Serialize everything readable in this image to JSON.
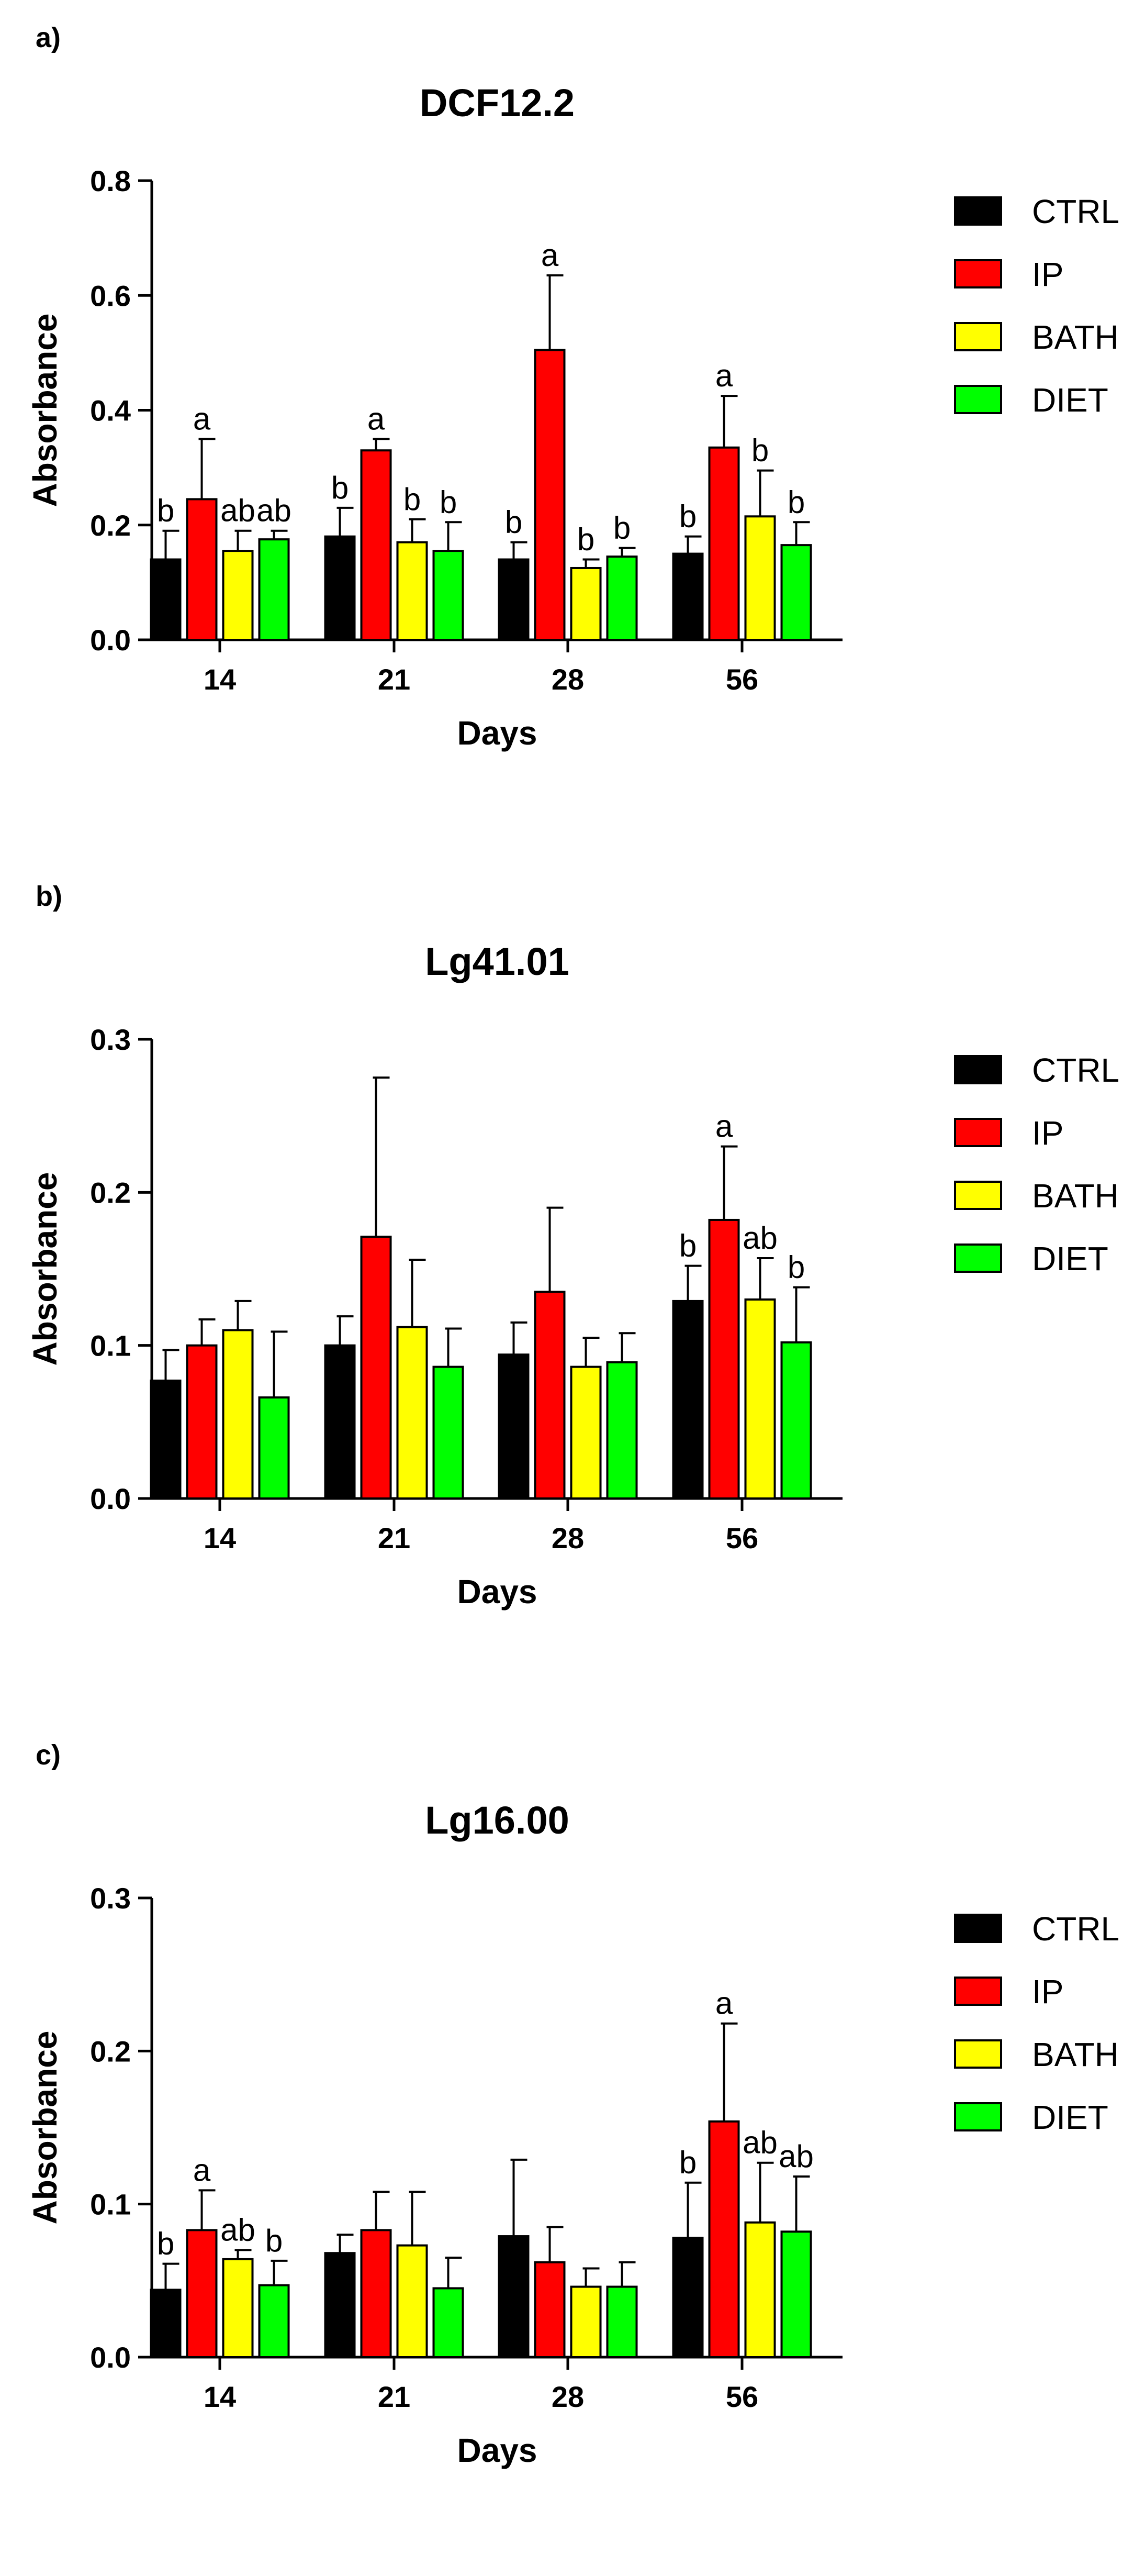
{
  "chart_data": [
    {
      "type": "bar",
      "panel_label": "a)",
      "title": "DCF12.2",
      "xlabel": "Days",
      "ylabel": "Absorbance",
      "ylim": [
        0,
        0.8
      ],
      "yticks": [
        "0.0",
        "0.2",
        "0.4",
        "0.6",
        "0.8"
      ],
      "ytick_values": [
        0,
        0.2,
        0.4,
        0.6,
        0.8
      ],
      "categories": [
        "14",
        "21",
        "28",
        "56"
      ],
      "series": [
        {
          "name": "CTRL",
          "color": "#000000",
          "values": [
            0.14,
            0.18,
            0.14,
            0.15
          ],
          "errors": [
            0.05,
            0.05,
            0.03,
            0.03
          ],
          "letters": [
            "b",
            "b",
            "b",
            "b"
          ]
        },
        {
          "name": "IP",
          "color": "#ff0000",
          "values": [
            0.245,
            0.33,
            0.505,
            0.335
          ],
          "errors": [
            0.105,
            0.02,
            0.13,
            0.09
          ],
          "letters": [
            "a",
            "a",
            "a",
            "a"
          ]
        },
        {
          "name": "BATH",
          "color": "#ffff00",
          "values": [
            0.155,
            0.17,
            0.125,
            0.215
          ],
          "errors": [
            0.035,
            0.04,
            0.015,
            0.08
          ],
          "letters": [
            "ab",
            "b",
            "b",
            "b"
          ]
        },
        {
          "name": "DIET",
          "color": "#00ff00",
          "values": [
            0.175,
            0.155,
            0.145,
            0.165
          ],
          "errors": [
            0.015,
            0.05,
            0.015,
            0.04
          ],
          "letters": [
            "ab",
            "b",
            "b",
            "b"
          ]
        }
      ]
    },
    {
      "type": "bar",
      "panel_label": "b)",
      "title": "Lg41.01",
      "xlabel": "Days",
      "ylabel": "Absorbance",
      "ylim": [
        0,
        0.3
      ],
      "yticks": [
        "0.0",
        "0.1",
        "0.2",
        "0.3"
      ],
      "ytick_values": [
        0,
        0.1,
        0.2,
        0.3
      ],
      "categories": [
        "14",
        "21",
        "28",
        "56"
      ],
      "series": [
        {
          "name": "CTRL",
          "color": "#000000",
          "values": [
            0.077,
            0.1,
            0.094,
            0.129
          ],
          "errors": [
            0.02,
            0.019,
            0.021,
            0.023
          ],
          "letters": [
            "",
            "",
            "",
            "b"
          ]
        },
        {
          "name": "IP",
          "color": "#ff0000",
          "values": [
            0.1,
            0.171,
            0.135,
            0.182
          ],
          "errors": [
            0.017,
            0.104,
            0.055,
            0.048
          ],
          "letters": [
            "",
            "",
            "",
            "a"
          ]
        },
        {
          "name": "BATH",
          "color": "#ffff00",
          "values": [
            0.11,
            0.112,
            0.086,
            0.13
          ],
          "errors": [
            0.019,
            0.044,
            0.019,
            0.027
          ],
          "letters": [
            "",
            "",
            "",
            "ab"
          ]
        },
        {
          "name": "DIET",
          "color": "#00ff00",
          "values": [
            0.066,
            0.086,
            0.089,
            0.102
          ],
          "errors": [
            0.043,
            0.025,
            0.019,
            0.036
          ],
          "letters": [
            "",
            "",
            "",
            "b"
          ]
        }
      ]
    },
    {
      "type": "bar",
      "panel_label": "c)",
      "title": "Lg16.00",
      "xlabel": "Days",
      "ylabel": "Absorbance",
      "ylim": [
        0,
        0.3
      ],
      "yticks": [
        "0.0",
        "0.1",
        "0.2",
        "0.3"
      ],
      "ytick_values": [
        0,
        0.1,
        0.2,
        0.3
      ],
      "categories": [
        "14",
        "21",
        "28",
        "56"
      ],
      "series": [
        {
          "name": "CTRL",
          "color": "#000000",
          "values": [
            0.044,
            0.068,
            0.079,
            0.078
          ],
          "errors": [
            0.017,
            0.012,
            0.05,
            0.036
          ],
          "letters": [
            "b",
            "",
            "",
            "b"
          ]
        },
        {
          "name": "IP",
          "color": "#ff0000",
          "values": [
            0.083,
            0.083,
            0.062,
            0.154
          ],
          "errors": [
            0.026,
            0.025,
            0.023,
            0.064
          ],
          "letters": [
            "a",
            "",
            "",
            "a"
          ]
        },
        {
          "name": "BATH",
          "color": "#ffff00",
          "values": [
            0.064,
            0.073,
            0.046,
            0.088
          ],
          "errors": [
            0.006,
            0.035,
            0.012,
            0.039
          ],
          "letters": [
            "ab",
            "",
            "",
            "ab"
          ]
        },
        {
          "name": "DIET",
          "color": "#00ff00",
          "values": [
            0.047,
            0.045,
            0.046,
            0.082
          ],
          "errors": [
            0.016,
            0.02,
            0.016,
            0.036
          ],
          "letters": [
            "b",
            "",
            "",
            "ab"
          ]
        }
      ]
    }
  ]
}
